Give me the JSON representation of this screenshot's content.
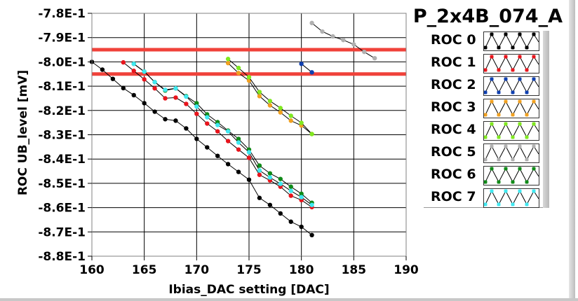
{
  "chart_data": {
    "type": "line",
    "title": "P_2x4B_074_A",
    "xlabel": "Ibias_DAC setting [DAC]",
    "ylabel": "ROC UB_level [mV]",
    "xlim": [
      160,
      190
    ],
    "ylim": [
      -0.88,
      -0.78
    ],
    "grid": true,
    "legend_position": "right",
    "x_ticks": [
      "160",
      "165",
      "170",
      "175",
      "180",
      "185",
      "190"
    ],
    "x_tick_values": [
      160,
      165,
      170,
      175,
      180,
      185,
      190
    ],
    "y_ticks": [
      "-7.8E-1",
      "-7.9E-1",
      "-8.0E-1",
      "-8.1E-1",
      "-8.2E-1",
      "-8.3E-1",
      "-8.4E-1",
      "-8.5E-1",
      "-8.6E-1",
      "-8.7E-1",
      "-8.8E-1"
    ],
    "y_tick_values": [
      -0.78,
      -0.79,
      -0.8,
      -0.81,
      -0.82,
      -0.83,
      -0.84,
      -0.85,
      -0.86,
      -0.87,
      -0.88
    ],
    "reference_lines": [
      {
        "name": "upper-limit",
        "y": -0.795,
        "color": "#f0423a"
      },
      {
        "name": "lower-limit",
        "y": -0.805,
        "color": "#f0423a"
      }
    ],
    "series": [
      {
        "name": "ROC 0",
        "color": "#000000",
        "x": [
          160,
          161,
          162,
          163,
          164,
          165,
          166,
          167,
          168,
          169,
          170,
          171,
          172,
          173,
          174,
          175,
          176,
          177,
          178,
          179,
          180,
          181
        ],
        "y": [
          -0.8,
          -0.8032,
          -0.807,
          -0.8108,
          -0.8137,
          -0.817,
          -0.8205,
          -0.8236,
          -0.8242,
          -0.8274,
          -0.8317,
          -0.8352,
          -0.8387,
          -0.8421,
          -0.8453,
          -0.8485,
          -0.856,
          -0.8589,
          -0.8624,
          -0.8658,
          -0.8679,
          -0.8713
        ]
      },
      {
        "name": "ROC 1",
        "color": "#e8141c",
        "x": [
          163,
          164,
          165,
          166,
          167,
          168,
          169,
          170,
          171,
          172,
          173,
          174,
          175,
          176,
          177,
          178,
          179,
          180,
          181
        ],
        "y": [
          -0.8002,
          -0.8037,
          -0.8072,
          -0.8109,
          -0.815,
          -0.8147,
          -0.8173,
          -0.8214,
          -0.8254,
          -0.8286,
          -0.8326,
          -0.8361,
          -0.8395,
          -0.8465,
          -0.8488,
          -0.8514,
          -0.8551,
          -0.8569,
          -0.8598
        ]
      },
      {
        "name": "ROC 2",
        "color": "#1040b0",
        "x": [
          180,
          181
        ],
        "y": [
          -0.8008,
          -0.8043
        ]
      },
      {
        "name": "ROC 3",
        "color": "#f0a020",
        "x": [
          173,
          174,
          175,
          176,
          177,
          178,
          179,
          180,
          181
        ],
        "y": [
          -0.8005,
          -0.8046,
          -0.8077,
          -0.8141,
          -0.8179,
          -0.8208,
          -0.8242,
          -0.8262,
          -0.8297
        ]
      },
      {
        "name": "ROC 4",
        "color": "#80e820",
        "x": [
          173,
          174,
          175,
          176,
          177,
          178,
          179,
          180,
          181
        ],
        "y": [
          -0.7988,
          -0.8025,
          -0.8063,
          -0.8124,
          -0.8161,
          -0.819,
          -0.8222,
          -0.8251,
          -0.8297
        ]
      },
      {
        "name": "ROC 5",
        "color": "#b0b0b0",
        "x": [
          181,
          182,
          183,
          184,
          185,
          186,
          187
        ],
        "y": [
          -0.784,
          -0.7875,
          -0.7895,
          -0.791,
          -0.7928,
          -0.7959,
          -0.7985
        ]
      },
      {
        "name": "ROC 6",
        "color": "#108a18",
        "x": [
          164,
          165,
          166,
          167,
          168,
          169,
          170,
          171,
          172,
          173,
          174,
          175,
          176,
          177,
          178,
          179,
          180,
          181
        ],
        "y": [
          -0.8008,
          -0.804,
          -0.8083,
          -0.8118,
          -0.8109,
          -0.8141,
          -0.817,
          -0.8216,
          -0.8248,
          -0.8283,
          -0.8317,
          -0.8361,
          -0.8427,
          -0.8459,
          -0.8482,
          -0.8514,
          -0.8543,
          -0.858
        ]
      },
      {
        "name": "ROC 7",
        "color": "#40e8f0",
        "x": [
          164,
          165,
          166,
          167,
          168,
          169,
          170,
          171,
          172,
          173,
          174,
          175,
          176,
          177,
          178,
          179,
          180,
          181
        ],
        "y": [
          -0.8008,
          -0.804,
          -0.8083,
          -0.8115,
          -0.8109,
          -0.8143,
          -0.8184,
          -0.8228,
          -0.826,
          -0.8286,
          -0.8332,
          -0.8372,
          -0.8447,
          -0.8476,
          -0.8502,
          -0.8531,
          -0.8557,
          -0.8589
        ]
      }
    ]
  },
  "legend": {
    "items": [
      {
        "label": "ROC 0",
        "color": "#000000"
      },
      {
        "label": "ROC 1",
        "color": "#e8141c"
      },
      {
        "label": "ROC 2",
        "color": "#1040b0"
      },
      {
        "label": "ROC 3",
        "color": "#f0a020"
      },
      {
        "label": "ROC 4",
        "color": "#80e820"
      },
      {
        "label": "ROC 5",
        "color": "#b0b0b0"
      },
      {
        "label": "ROC 6",
        "color": "#108a18"
      },
      {
        "label": "ROC 7",
        "color": "#40e8f0"
      }
    ]
  }
}
